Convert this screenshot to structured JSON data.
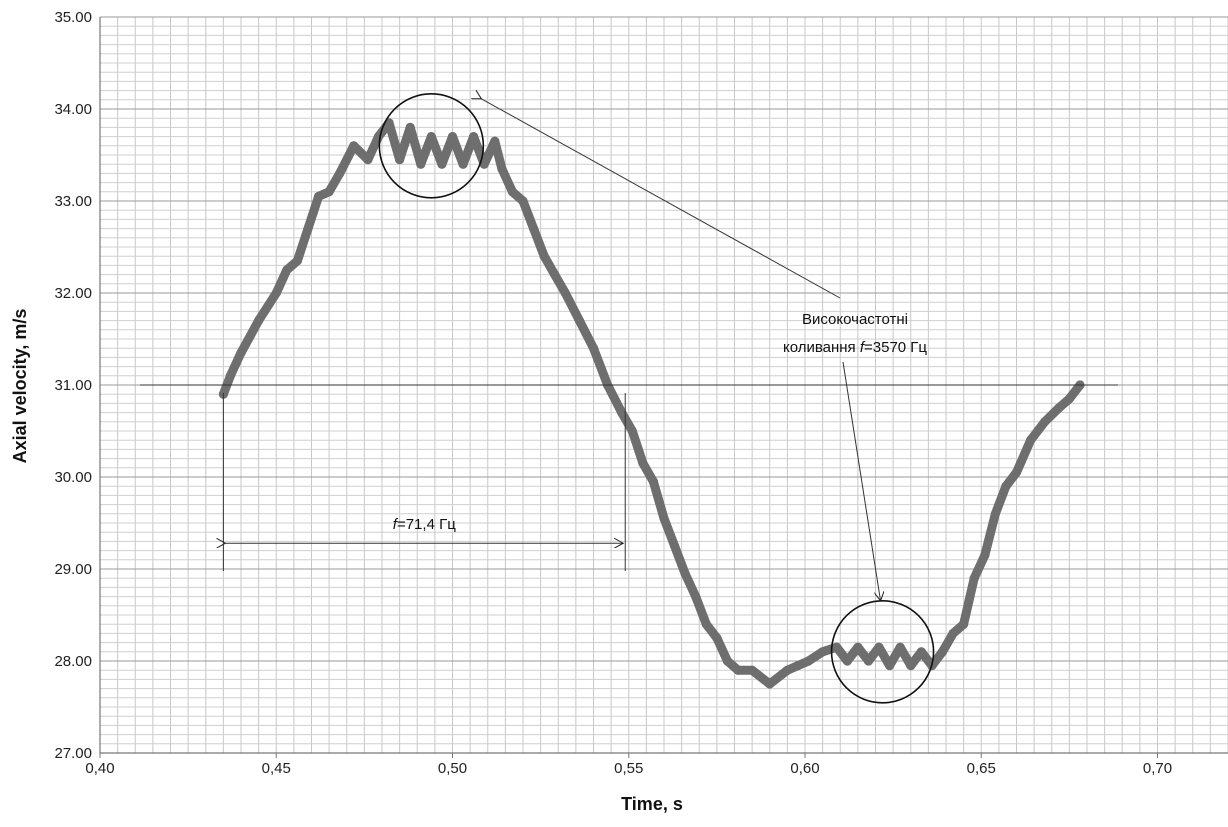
{
  "chart_data": {
    "type": "line",
    "title": "",
    "xlabel": "Time, s",
    "ylabel": "Axial velocity, m/s",
    "xlim": [
      0.4,
      0.72
    ],
    "ylim": [
      27.0,
      35.0
    ],
    "x_tick_labels": [
      "0,40",
      "0,45",
      "0,50",
      "0,55",
      "0,60",
      "0,65",
      "0,70"
    ],
    "y_tick_labels": [
      "27.00",
      "28.00",
      "29.00",
      "30.00",
      "31.00",
      "32.00",
      "33.00",
      "34.00",
      "35.00"
    ],
    "grid": true,
    "series": [
      {
        "color": "#6e6e6e",
        "x": [
          0.435,
          0.437,
          0.44,
          0.445,
          0.45,
          0.453,
          0.456,
          0.459,
          0.462,
          0.465,
          0.468,
          0.472,
          0.476,
          0.479,
          0.482,
          0.485,
          0.488,
          0.491,
          0.494,
          0.497,
          0.5,
          0.503,
          0.506,
          0.509,
          0.512,
          0.514,
          0.517,
          0.52,
          0.523,
          0.526,
          0.529,
          0.532,
          0.536,
          0.54,
          0.544,
          0.548,
          0.551,
          0.554,
          0.557,
          0.56,
          0.563,
          0.566,
          0.569,
          0.572,
          0.575,
          0.578,
          0.581,
          0.585,
          0.59,
          0.595,
          0.598,
          0.601,
          0.605,
          0.609,
          0.612,
          0.615,
          0.618,
          0.621,
          0.624,
          0.627,
          0.63,
          0.633,
          0.636,
          0.639,
          0.642,
          0.645,
          0.648,
          0.651,
          0.654,
          0.657,
          0.66,
          0.664,
          0.668,
          0.672,
          0.675,
          0.678
        ],
        "y": [
          30.9,
          31.1,
          31.35,
          31.7,
          32.0,
          32.25,
          32.35,
          32.7,
          33.05,
          33.1,
          33.3,
          33.6,
          33.45,
          33.7,
          33.85,
          33.45,
          33.8,
          33.4,
          33.7,
          33.4,
          33.7,
          33.4,
          33.7,
          33.4,
          33.65,
          33.35,
          33.1,
          33.0,
          32.7,
          32.4,
          32.2,
          32.0,
          31.7,
          31.4,
          31.0,
          30.7,
          30.5,
          30.15,
          29.95,
          29.55,
          29.25,
          28.95,
          28.7,
          28.4,
          28.25,
          28.0,
          27.9,
          27.9,
          27.75,
          27.9,
          27.95,
          28.0,
          28.1,
          28.15,
          28.0,
          28.15,
          28.0,
          28.15,
          27.95,
          28.15,
          27.95,
          28.1,
          27.95,
          28.1,
          28.3,
          28.4,
          28.9,
          29.15,
          29.6,
          29.9,
          30.05,
          30.4,
          30.6,
          30.75,
          30.85,
          31.0
        ]
      }
    ],
    "annotations": {
      "period_label_prefix": "f",
      "period_label_rest": "=71,4 Гц",
      "hf_line1": "Високочастотні",
      "hf_line2_prefix": "коливання ",
      "hf_line2_f": "f",
      "hf_line2_rest": "=3570 Гц",
      "reference_y": 31.0,
      "period_x_start": 0.435,
      "period_x_end": 0.549,
      "period_arrow_y": 29.28,
      "circle_top_center": [
        0.494,
        33.6
      ],
      "circle_bottom_center": [
        0.622,
        28.1
      ]
    }
  }
}
